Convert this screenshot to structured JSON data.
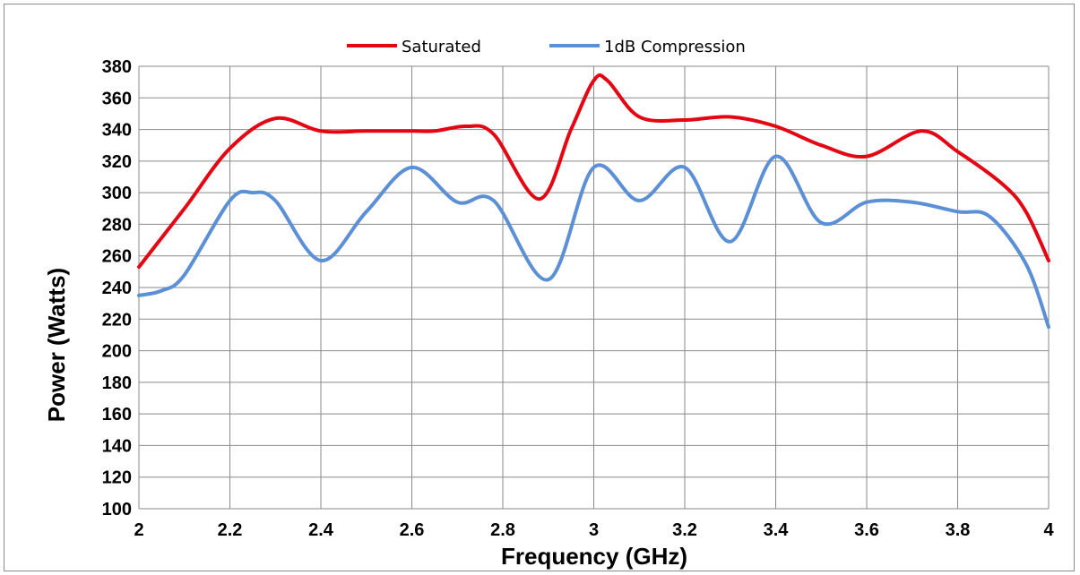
{
  "chart_data": {
    "type": "line",
    "xlabel": "Frequency (GHz)",
    "ylabel": "Power (Watts)",
    "xlim": [
      2,
      4
    ],
    "ylim": [
      100,
      380
    ],
    "xticks": [
      "2",
      "2.2",
      "2.4",
      "2.6",
      "2.8",
      "3",
      "3.2",
      "3.4",
      "3.6",
      "3.8",
      "4"
    ],
    "yticks": [
      "100",
      "120",
      "140",
      "160",
      "180",
      "200",
      "220",
      "240",
      "260",
      "280",
      "300",
      "320",
      "340",
      "360",
      "380"
    ],
    "grid": true,
    "legend_position": "top",
    "series": [
      {
        "name": "Saturated",
        "color": "#e30613",
        "points": [
          [
            2.0,
            253
          ],
          [
            2.1,
            290
          ],
          [
            2.2,
            328
          ],
          [
            2.3,
            347
          ],
          [
            2.4,
            339
          ],
          [
            2.5,
            339
          ],
          [
            2.6,
            339
          ],
          [
            2.65,
            339
          ],
          [
            2.72,
            342
          ],
          [
            2.78,
            337
          ],
          [
            2.88,
            296
          ],
          [
            2.95,
            340
          ],
          [
            3.0,
            371
          ],
          [
            3.03,
            371
          ],
          [
            3.1,
            348
          ],
          [
            3.2,
            346
          ],
          [
            3.3,
            348
          ],
          [
            3.4,
            342
          ],
          [
            3.5,
            330
          ],
          [
            3.6,
            323
          ],
          [
            3.72,
            339
          ],
          [
            3.8,
            326
          ],
          [
            3.9,
            305
          ],
          [
            3.95,
            288
          ],
          [
            4.0,
            257
          ]
        ]
      },
      {
        "name": "1dB Compression",
        "color": "#5b8fd6",
        "points": [
          [
            2.0,
            235
          ],
          [
            2.05,
            238
          ],
          [
            2.1,
            248
          ],
          [
            2.2,
            295
          ],
          [
            2.25,
            300
          ],
          [
            2.3,
            295
          ],
          [
            2.4,
            257
          ],
          [
            2.5,
            288
          ],
          [
            2.6,
            316
          ],
          [
            2.7,
            294
          ],
          [
            2.78,
            295
          ],
          [
            2.9,
            245
          ],
          [
            3.0,
            316
          ],
          [
            3.1,
            295
          ],
          [
            3.2,
            316
          ],
          [
            3.3,
            269
          ],
          [
            3.4,
            323
          ],
          [
            3.5,
            281
          ],
          [
            3.6,
            294
          ],
          [
            3.7,
            294
          ],
          [
            3.8,
            288
          ],
          [
            3.87,
            285
          ],
          [
            3.95,
            255
          ],
          [
            4.0,
            215
          ]
        ]
      }
    ]
  }
}
